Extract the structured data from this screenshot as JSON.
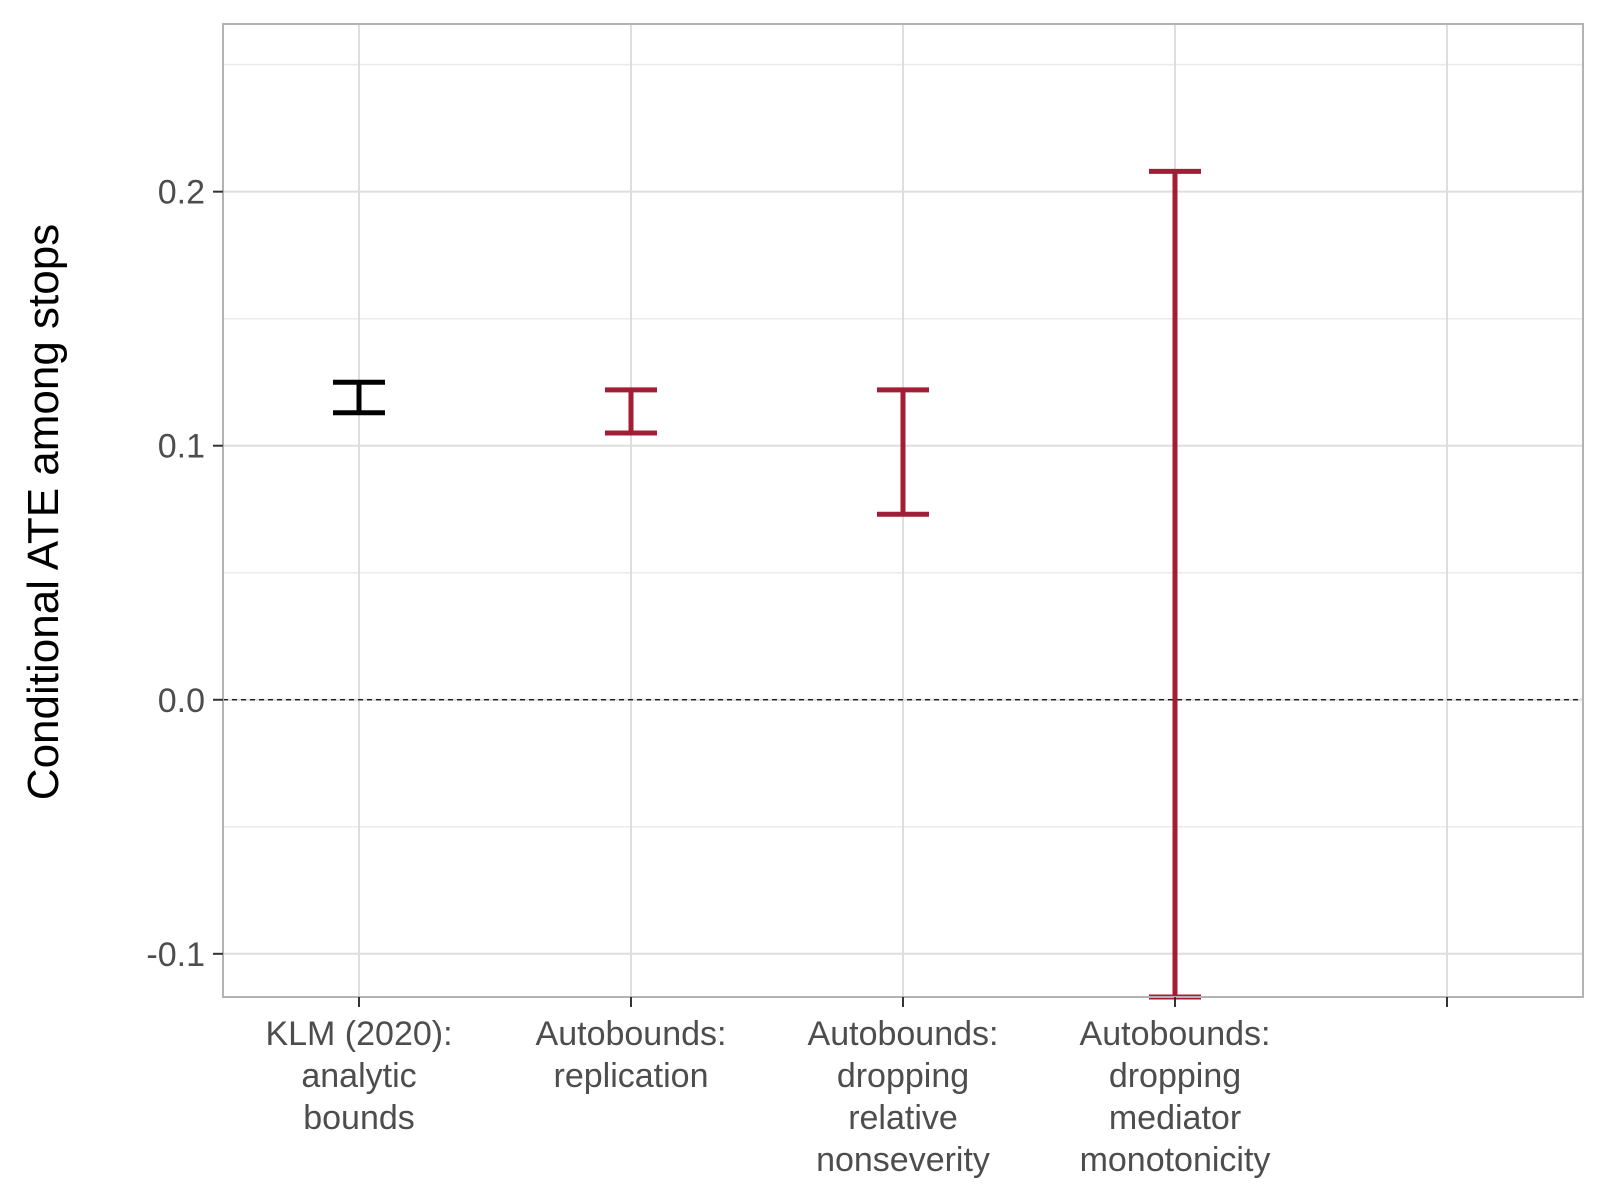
{
  "chart_data": {
    "type": "errorbar",
    "title": "",
    "xlabel": "",
    "ylabel": "Conditional ATE among stops",
    "ylim": [
      -0.117,
      0.266
    ],
    "yticks": [
      -0.1,
      0.0,
      0.1,
      0.2
    ],
    "ytick_labels": [
      "-0.1",
      "0.0",
      "0.1",
      "0.2"
    ],
    "x_slots": 5,
    "categories": [
      [
        "KLM (2020):",
        "analytic",
        "bounds"
      ],
      [
        "Autobounds:",
        "replication"
      ],
      [
        "Autobounds:",
        "dropping",
        "relative",
        "nonseverity"
      ],
      [
        "Autobounds:",
        "dropping",
        "mediator",
        "monotonicity"
      ]
    ],
    "intervals": [
      {
        "lower": 0.113,
        "upper": 0.125,
        "color": "#000000"
      },
      {
        "lower": 0.105,
        "upper": 0.122,
        "color": "#a51c36"
      },
      {
        "lower": 0.073,
        "upper": 0.122,
        "color": "#a51c36"
      },
      {
        "lower": -0.117,
        "upper": 0.208,
        "color": "#a51c36"
      }
    ],
    "reference_line": {
      "y": 0.0,
      "style": "dashed",
      "color": "#000000"
    },
    "grid": true,
    "theme": "light"
  }
}
